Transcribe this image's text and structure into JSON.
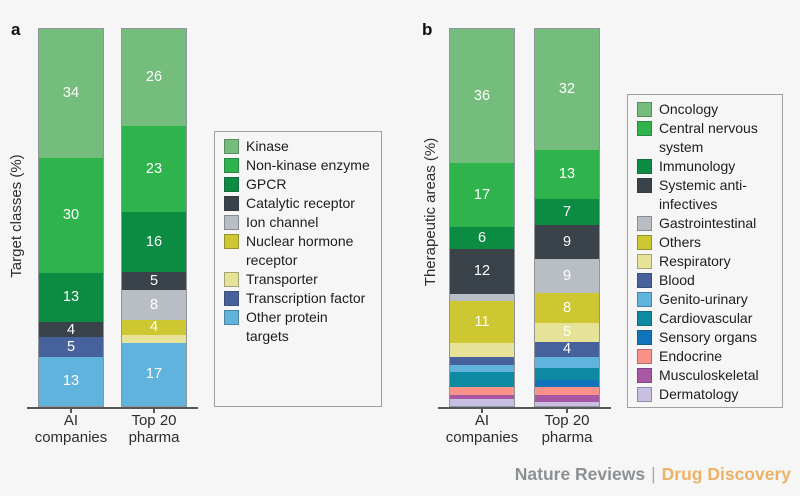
{
  "background_color": "#f6f6f6",
  "footer": {
    "journal": "Nature Reviews",
    "separator": "|",
    "title": "Drug Discovery",
    "journal_color": "#8e9194",
    "title_color": "#ecb266"
  },
  "chart_data": [
    {
      "type": "bar",
      "subtype": "stacked-percent-column",
      "panel": "a",
      "ylabel": "Target classes (%)",
      "ylim": [
        0,
        100
      ],
      "grid": false,
      "legend_position": "right",
      "categories": [
        {
          "label": "AI companies",
          "lines": [
            "AI",
            "companies"
          ]
        },
        {
          "label": "Top 20 pharma",
          "lines": [
            "Top 20",
            "pharma"
          ]
        }
      ],
      "series": [
        {
          "name": "Kinase",
          "color": "#75bd7c",
          "values": [
            34,
            26
          ],
          "labeled": [
            true,
            true
          ]
        },
        {
          "name": "Non-kinase enzyme",
          "color": "#2fb44d",
          "values": [
            30,
            23
          ],
          "labeled": [
            true,
            true
          ]
        },
        {
          "name": "GPCR",
          "color": "#0c8b42",
          "values": [
            13,
            16
          ],
          "labeled": [
            true,
            true
          ]
        },
        {
          "name": "Catalytic receptor",
          "color": "#3a424a",
          "values": [
            4,
            5
          ],
          "labeled": [
            true,
            true
          ]
        },
        {
          "name": "Ion channel",
          "color": "#b8bec4",
          "values": [
            0,
            8
          ],
          "labeled": [
            false,
            true
          ]
        },
        {
          "name": "Nuclear hormone receptor",
          "color": "#cdc732",
          "values": [
            0,
            4
          ],
          "labeled": [
            false,
            true
          ]
        },
        {
          "name": "Transporter",
          "color": "#e6e398",
          "values": [
            0,
            2
          ],
          "labeled": [
            false,
            false
          ]
        },
        {
          "name": "Transcription factor",
          "color": "#46619c",
          "values": [
            5,
            0
          ],
          "labeled": [
            true,
            false
          ]
        },
        {
          "name": "Other protein targets",
          "color": "#5fb3dd",
          "values": [
            13,
            17
          ],
          "labeled": [
            true,
            true
          ]
        }
      ]
    },
    {
      "type": "bar",
      "subtype": "stacked-percent-column",
      "panel": "b",
      "ylabel": "Therapeutic areas (%)",
      "ylim": [
        0,
        100
      ],
      "grid": false,
      "legend_position": "right",
      "categories": [
        {
          "label": "AI companies",
          "lines": [
            "AI",
            "companies"
          ]
        },
        {
          "label": "Top 20 pharma",
          "lines": [
            "Top 20",
            "pharma"
          ]
        }
      ],
      "series": [
        {
          "name": "Oncology",
          "color": "#75bd7c",
          "values": [
            36,
            32
          ],
          "labeled": [
            true,
            true
          ]
        },
        {
          "name": "Central nervous system",
          "color": "#2fb44d",
          "values": [
            17,
            13
          ],
          "labeled": [
            true,
            true
          ]
        },
        {
          "name": "Immunology",
          "color": "#0c8b42",
          "values": [
            6,
            7
          ],
          "labeled": [
            true,
            true
          ]
        },
        {
          "name": "Systemic anti-infectives",
          "color": "#3a424a",
          "values": [
            12,
            9
          ],
          "labeled": [
            true,
            true
          ]
        },
        {
          "name": "Gastrointestinal",
          "color": "#b8bec4",
          "values": [
            2,
            9
          ],
          "labeled": [
            false,
            true
          ]
        },
        {
          "name": "Others",
          "color": "#cdc732",
          "values": [
            11,
            8
          ],
          "labeled": [
            true,
            true
          ]
        },
        {
          "name": "Respiratory",
          "color": "#e6e398",
          "values": [
            4,
            5
          ],
          "labeled": [
            false,
            true
          ]
        },
        {
          "name": "Blood",
          "color": "#46619c",
          "values": [
            2,
            4
          ],
          "labeled": [
            false,
            true
          ]
        },
        {
          "name": "Genito-urinary",
          "color": "#5fb3dd",
          "values": [
            2,
            3
          ],
          "labeled": [
            false,
            false
          ]
        },
        {
          "name": "Cardiovascular",
          "color": "#0d89a1",
          "values": [
            4,
            3
          ],
          "labeled": [
            false,
            false
          ]
        },
        {
          "name": "Sensory organs",
          "color": "#1173b9",
          "values": [
            0,
            2
          ],
          "labeled": [
            false,
            false
          ]
        },
        {
          "name": "Endocrine",
          "color": "#fa9289",
          "values": [
            2,
            2
          ],
          "labeled": [
            false,
            false
          ]
        },
        {
          "name": "Musculoskeletal",
          "color": "#a757a3",
          "values": [
            1,
            2
          ],
          "labeled": [
            false,
            false
          ]
        },
        {
          "name": "Dermatology",
          "color": "#c9bfe3",
          "values": [
            2,
            1
          ],
          "labeled": [
            false,
            false
          ]
        }
      ]
    }
  ]
}
